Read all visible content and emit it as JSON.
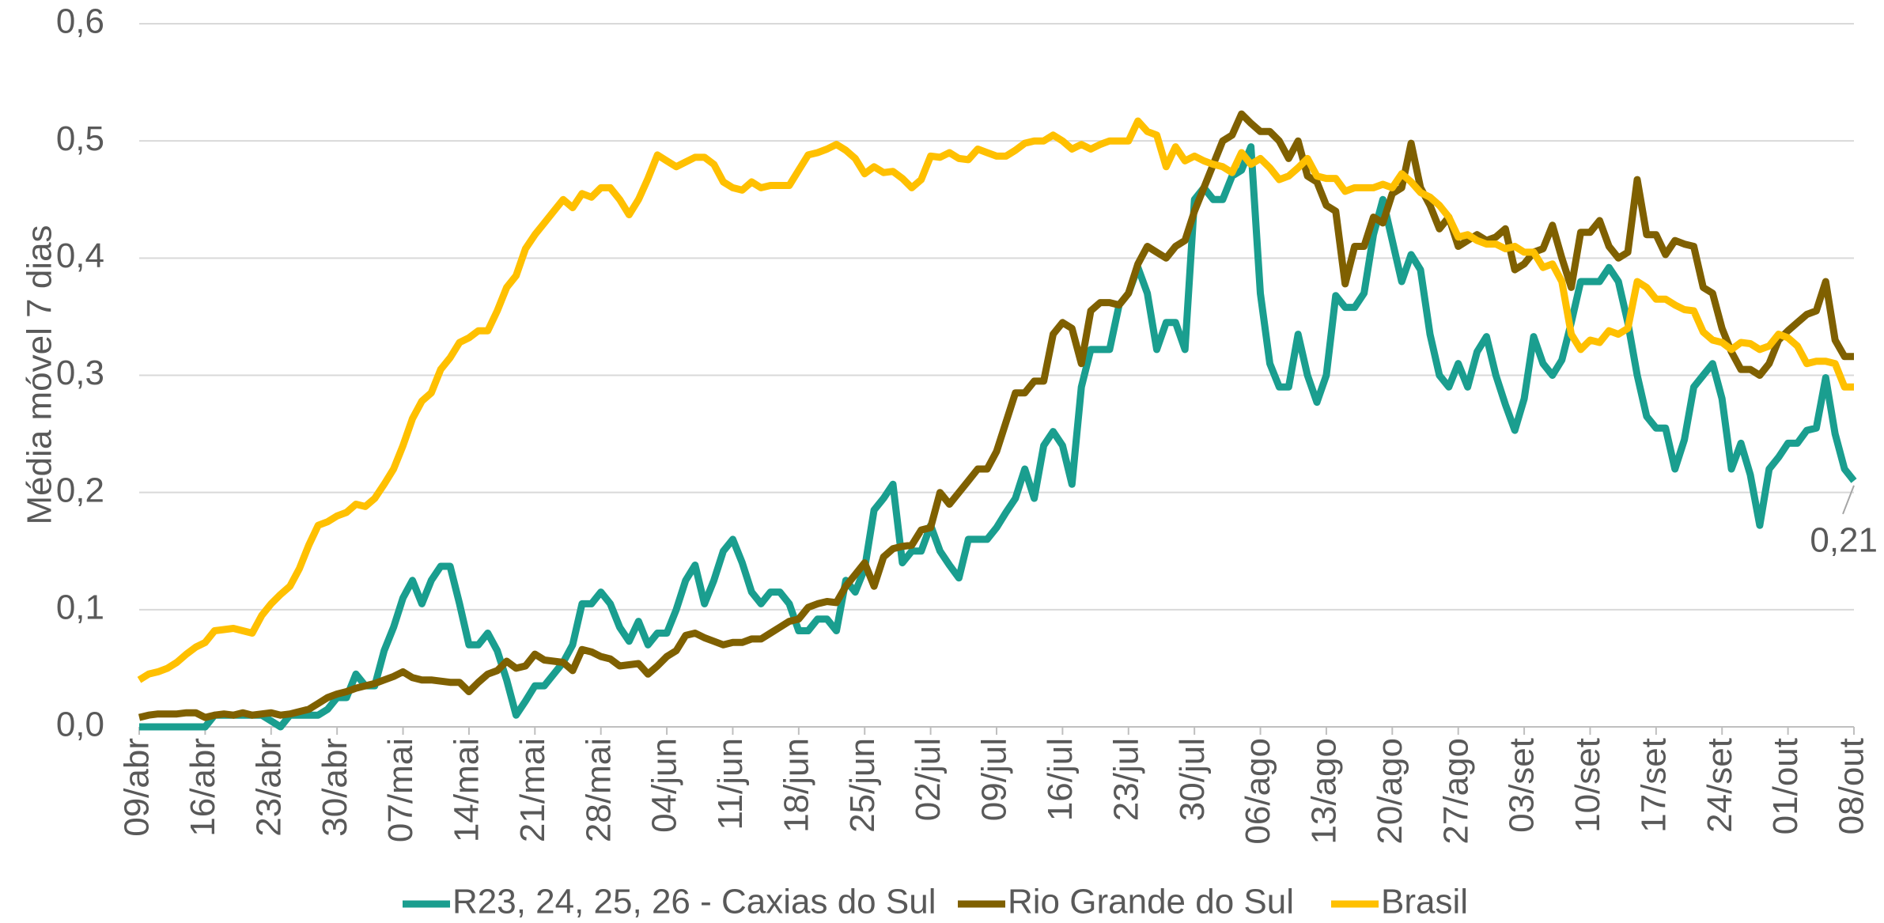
{
  "chart_data": {
    "type": "line",
    "y_label": "Média móvel 7 dias",
    "categories": [
      "09/abr",
      null,
      null,
      null,
      null,
      null,
      null,
      "16/abr",
      null,
      null,
      null,
      null,
      null,
      null,
      "23/abr",
      null,
      null,
      null,
      null,
      null,
      null,
      "30/abr",
      null,
      null,
      null,
      null,
      null,
      null,
      "07/mai",
      null,
      null,
      null,
      null,
      null,
      null,
      "14/mai",
      null,
      null,
      null,
      null,
      null,
      null,
      "21/mai",
      null,
      null,
      null,
      null,
      null,
      null,
      "28/mai",
      null,
      null,
      null,
      null,
      null,
      null,
      "04/jun",
      null,
      null,
      null,
      null,
      null,
      null,
      "11/jun",
      null,
      null,
      null,
      null,
      null,
      null,
      "18/jun",
      null,
      null,
      null,
      null,
      null,
      null,
      "25/jun",
      null,
      null,
      null,
      null,
      null,
      null,
      "02/jul",
      null,
      null,
      null,
      null,
      null,
      null,
      "09/jul",
      null,
      null,
      null,
      null,
      null,
      null,
      "16/jul",
      null,
      null,
      null,
      null,
      null,
      null,
      "23/jul",
      null,
      null,
      null,
      null,
      null,
      null,
      "30/jul",
      null,
      null,
      null,
      null,
      null,
      null,
      "06/ago",
      null,
      null,
      null,
      null,
      null,
      null,
      "13/ago",
      null,
      null,
      null,
      null,
      null,
      null,
      "20/ago",
      null,
      null,
      null,
      null,
      null,
      null,
      "27/ago",
      null,
      null,
      null,
      null,
      null,
      null,
      "03/set",
      null,
      null,
      null,
      null,
      null,
      null,
      "10/set",
      null,
      null,
      null,
      null,
      null,
      null,
      "17/set",
      null,
      null,
      null,
      null,
      null,
      null,
      "24/set",
      null,
      null,
      null,
      null,
      null,
      null,
      "01/out",
      null,
      null,
      null,
      null,
      null,
      null,
      "08/out"
    ],
    "series": [
      {
        "name": "R23, 24, 25, 26 - Caxias do Sul",
        "color": "#1a9e8f",
        "values": [
          0,
          0,
          0,
          0,
          0,
          0,
          0,
          0,
          0.01,
          0.01,
          0.01,
          0.01,
          0.01,
          0.01,
          0.005,
          0.0,
          0.01,
          0.01,
          0.01,
          0.01,
          0.015,
          0.025,
          0.025,
          0.045,
          0.035,
          0.035,
          0.065,
          0.085,
          0.11,
          0.125,
          0.105,
          0.125,
          0.137,
          0.137,
          0.105,
          0.07,
          0.07,
          0.08,
          0.065,
          0.04,
          0.01,
          0.022,
          0.035,
          0.035,
          0.045,
          0.055,
          0.07,
          0.105,
          0.105,
          0.115,
          0.105,
          0.085,
          0.073,
          0.09,
          0.07,
          0.08,
          0.08,
          0.1,
          0.125,
          0.138,
          0.105,
          0.125,
          0.15,
          0.16,
          0.14,
          0.115,
          0.105,
          0.115,
          0.115,
          0.105,
          0.082,
          0.082,
          0.092,
          0.092,
          0.082,
          0.125,
          0.115,
          0.135,
          0.185,
          0.195,
          0.207,
          0.14,
          0.15,
          0.15,
          0.172,
          0.15,
          0.138,
          0.127,
          0.16,
          0.16,
          0.16,
          0.17,
          0.183,
          0.195,
          0.22,
          0.195,
          0.24,
          0.252,
          0.24,
          0.207,
          0.29,
          0.322,
          0.322,
          0.322,
          0.36,
          0.37,
          0.392,
          0.37,
          0.322,
          0.345,
          0.345,
          0.322,
          0.45,
          0.46,
          0.45,
          0.45,
          0.47,
          0.475,
          0.495,
          0.37,
          0.31,
          0.29,
          0.29,
          0.335,
          0.3,
          0.277,
          0.3,
          0.368,
          0.358,
          0.358,
          0.37,
          0.42,
          0.45,
          0.415,
          0.38,
          0.403,
          0.39,
          0.335,
          0.3,
          0.29,
          0.31,
          0.29,
          0.32,
          0.333,
          0.3,
          0.275,
          0.253,
          0.28,
          0.333,
          0.31,
          0.3,
          0.313,
          0.345,
          0.38,
          0.38,
          0.38,
          0.392,
          0.38,
          0.345,
          0.3,
          0.265,
          0.255,
          0.255,
          0.22,
          0.245,
          0.29,
          0.3,
          0.31,
          0.28,
          0.22,
          0.242,
          0.215,
          0.172,
          0.22,
          0.23,
          0.242,
          0.242,
          0.253,
          0.255,
          0.298,
          0.25,
          0.22,
          0.21
        ],
        "value_labels": [
          null,
          null,
          null,
          null,
          null,
          null,
          null,
          null,
          null,
          null,
          null,
          null,
          null,
          null,
          null,
          null,
          null,
          null,
          null,
          null,
          null,
          null,
          null,
          null,
          null,
          null,
          null,
          null,
          null,
          null,
          null,
          null,
          null,
          null,
          null,
          null,
          null,
          null,
          null,
          null,
          null,
          null,
          null,
          null,
          null,
          null,
          null,
          null,
          null,
          null,
          null,
          null,
          null,
          null,
          null,
          null,
          null,
          null,
          null,
          null,
          null,
          null,
          null,
          null,
          null,
          null,
          null,
          null,
          null,
          null,
          null,
          null,
          null,
          null,
          null,
          null,
          null,
          null,
          null,
          null,
          null,
          null,
          null,
          null,
          null,
          null,
          null,
          null,
          null,
          null,
          null,
          null,
          null,
          null,
          null,
          null,
          null,
          null,
          null,
          null,
          null,
          null,
          null,
          null,
          null,
          null,
          null,
          null,
          null,
          null,
          null,
          null,
          null,
          null,
          null,
          null,
          null,
          null,
          null,
          null,
          null,
          null,
          null,
          null,
          null,
          null,
          null,
          null,
          null,
          null,
          null,
          null,
          null,
          null,
          null,
          null,
          null,
          null,
          null,
          null,
          null,
          null,
          null,
          null,
          null,
          null,
          null,
          null,
          null,
          null,
          null,
          null,
          null,
          null,
          null,
          null,
          null,
          null,
          null,
          null,
          null,
          null,
          null,
          null,
          null,
          null,
          null,
          null,
          null,
          null,
          null,
          null,
          null,
          null,
          null,
          null,
          null,
          null,
          null,
          null,
          null,
          null,
          "0,21"
        ]
      },
      {
        "name": "Rio Grande do Sul",
        "color": "#7f6000",
        "values": [
          0.008,
          0.01,
          0.011,
          0.011,
          0.011,
          0.012,
          0.012,
          0.008,
          0.01,
          0.011,
          0.01,
          0.012,
          0.01,
          0.011,
          0.012,
          0.01,
          0.011,
          0.013,
          0.015,
          0.02,
          0.025,
          0.028,
          0.03,
          0.033,
          0.035,
          0.037,
          0.04,
          0.043,
          0.047,
          0.042,
          0.04,
          0.04,
          0.039,
          0.038,
          0.038,
          0.03,
          0.038,
          0.045,
          0.048,
          0.056,
          0.05,
          0.052,
          0.062,
          0.057,
          0.056,
          0.055,
          0.048,
          0.066,
          0.064,
          0.06,
          0.058,
          0.052,
          0.053,
          0.054,
          0.045,
          0.052,
          0.06,
          0.065,
          0.078,
          0.08,
          0.076,
          0.073,
          0.07,
          0.072,
          0.072,
          0.075,
          0.075,
          0.08,
          0.085,
          0.09,
          0.092,
          0.102,
          0.105,
          0.107,
          0.106,
          0.12,
          0.13,
          0.14,
          0.12,
          0.145,
          0.152,
          0.154,
          0.155,
          0.168,
          0.17,
          0.2,
          0.19,
          0.2,
          0.21,
          0.22,
          0.22,
          0.235,
          0.26,
          0.285,
          0.285,
          0.295,
          0.295,
          0.335,
          0.345,
          0.34,
          0.31,
          0.355,
          0.362,
          0.362,
          0.36,
          0.37,
          0.395,
          0.41,
          0.405,
          0.4,
          0.41,
          0.415,
          0.44,
          0.46,
          0.48,
          0.5,
          0.505,
          0.523,
          0.515,
          0.508,
          0.508,
          0.5,
          0.485,
          0.5,
          0.47,
          0.465,
          0.445,
          0.44,
          0.378,
          0.41,
          0.41,
          0.435,
          0.43,
          0.455,
          0.46,
          0.498,
          0.46,
          0.445,
          0.425,
          0.435,
          0.41,
          0.415,
          0.42,
          0.415,
          0.418,
          0.425,
          0.39,
          0.395,
          0.405,
          0.408,
          0.428,
          0.4,
          0.375,
          0.422,
          0.422,
          0.432,
          0.41,
          0.4,
          0.405,
          0.467,
          0.42,
          0.42,
          0.403,
          0.415,
          0.412,
          0.41,
          0.375,
          0.37,
          0.34,
          0.32,
          0.305,
          0.305,
          0.3,
          0.31,
          0.33,
          0.338,
          0.345,
          0.352,
          0.355,
          0.38,
          0.33,
          0.316,
          0.316
        ]
      },
      {
        "name": "Brasil",
        "color": "#ffc000",
        "values": [
          0.04,
          0.045,
          0.047,
          0.05,
          0.055,
          0.062,
          0.068,
          0.072,
          0.082,
          0.083,
          0.084,
          0.082,
          0.08,
          0.095,
          0.105,
          0.113,
          0.12,
          0.135,
          0.155,
          0.172,
          0.175,
          0.18,
          0.183,
          0.19,
          0.188,
          0.195,
          0.207,
          0.22,
          0.24,
          0.263,
          0.278,
          0.285,
          0.305,
          0.315,
          0.328,
          0.332,
          0.338,
          0.338,
          0.355,
          0.375,
          0.385,
          0.408,
          0.42,
          0.43,
          0.44,
          0.45,
          0.443,
          0.455,
          0.452,
          0.46,
          0.46,
          0.45,
          0.437,
          0.45,
          0.468,
          0.488,
          0.483,
          0.478,
          0.482,
          0.486,
          0.486,
          0.48,
          0.465,
          0.46,
          0.458,
          0.465,
          0.46,
          0.462,
          0.462,
          0.462,
          0.475,
          0.488,
          0.49,
          0.493,
          0.497,
          0.492,
          0.485,
          0.472,
          0.478,
          0.473,
          0.474,
          0.468,
          0.46,
          0.467,
          0.487,
          0.486,
          0.49,
          0.485,
          0.484,
          0.493,
          0.49,
          0.487,
          0.487,
          0.492,
          0.498,
          0.5,
          0.5,
          0.505,
          0.5,
          0.493,
          0.497,
          0.493,
          0.497,
          0.5,
          0.5,
          0.5,
          0.517,
          0.508,
          0.505,
          0.478,
          0.495,
          0.483,
          0.487,
          0.483,
          0.48,
          0.478,
          0.473,
          0.49,
          0.48,
          0.485,
          0.477,
          0.467,
          0.47,
          0.477,
          0.485,
          0.47,
          0.468,
          0.468,
          0.457,
          0.46,
          0.46,
          0.46,
          0.463,
          0.46,
          0.472,
          0.465,
          0.456,
          0.452,
          0.445,
          0.435,
          0.418,
          0.42,
          0.415,
          0.412,
          0.412,
          0.408,
          0.41,
          0.405,
          0.405,
          0.392,
          0.395,
          0.38,
          0.335,
          0.322,
          0.33,
          0.328,
          0.338,
          0.335,
          0.34,
          0.38,
          0.375,
          0.365,
          0.365,
          0.36,
          0.356,
          0.355,
          0.337,
          0.33,
          0.328,
          0.322,
          0.328,
          0.327,
          0.322,
          0.325,
          0.335,
          0.332,
          0.325,
          0.31,
          0.312,
          0.312,
          0.31,
          0.29,
          0.29
        ]
      }
    ],
    "ylim": [
      0,
      0.6
    ],
    "yticks": [
      {
        "value": 0,
        "label": "0,0"
      },
      {
        "value": 0.1,
        "label": "0,1"
      },
      {
        "value": 0.2,
        "label": "0,2"
      },
      {
        "value": 0.3,
        "label": "0,3"
      },
      {
        "value": 0.4,
        "label": "0,4"
      },
      {
        "value": 0.5,
        "label": "0,5"
      },
      {
        "value": 0.6,
        "label": "0,6"
      }
    ],
    "grid": true,
    "legend": "bottom"
  }
}
